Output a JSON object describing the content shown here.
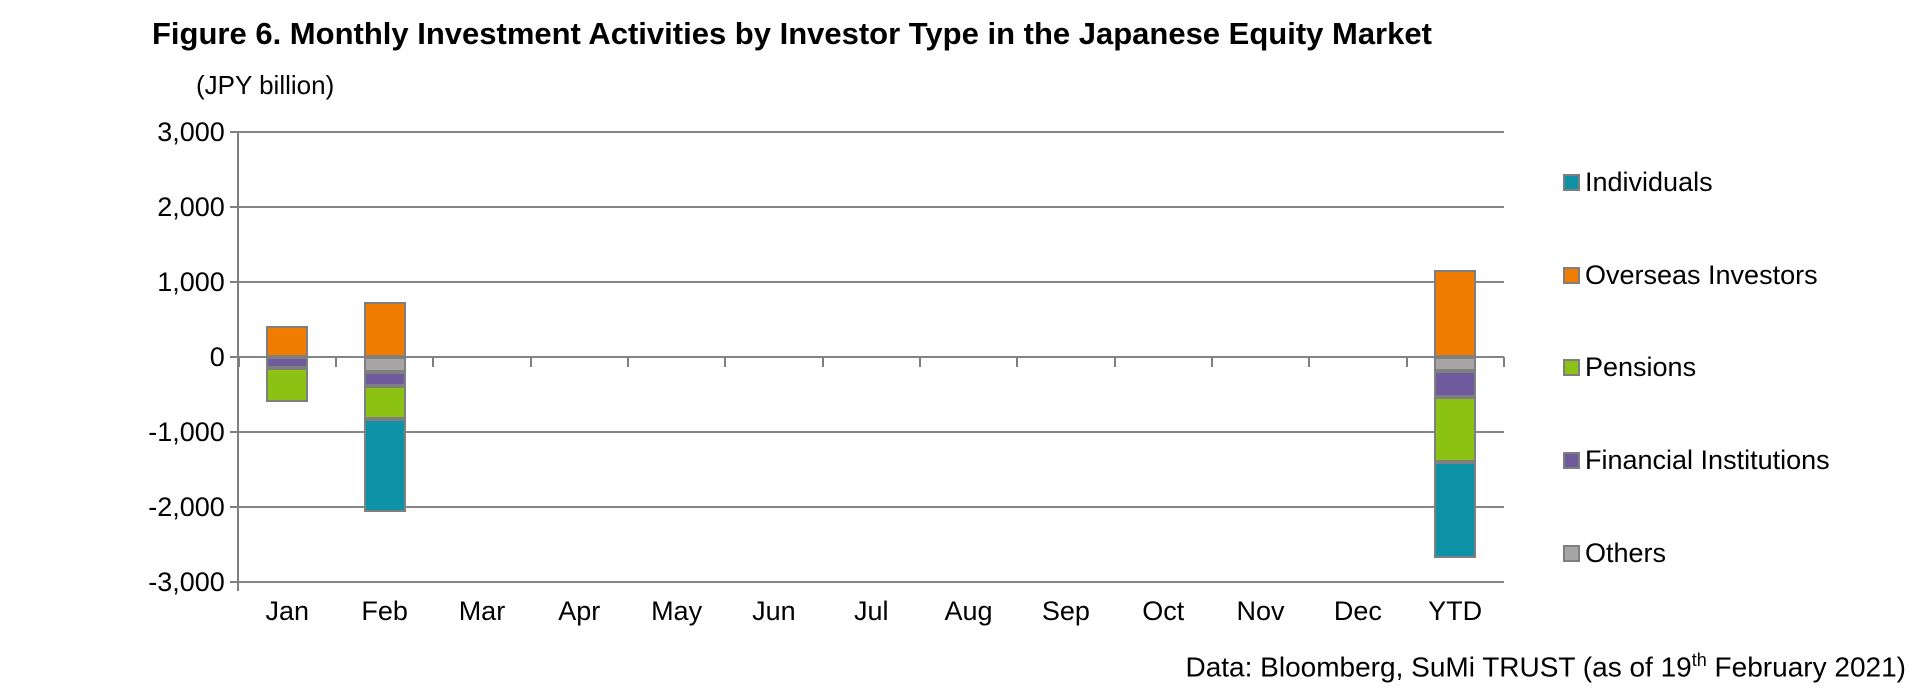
{
  "title": "Figure 6. Monthly Investment Activities by Investor Type in the Japanese Equity Market",
  "unit_label": "(JPY billion)",
  "source": {
    "prefix": "Data: Bloomberg, SuMi TRUST (as of 19",
    "superscript": "th",
    "suffix": " February 2021)"
  },
  "colors": {
    "axis": "#858585",
    "segment_border": "#7f7f7f",
    "text": "#000000",
    "background": "#ffffff"
  },
  "chart_data": {
    "type": "bar",
    "stacked": true,
    "title": "Figure 6. Monthly Investment Activities by Investor Type in the Japanese Equity Market",
    "ylabel": "(JPY billion)",
    "categories": [
      "Jan",
      "Feb",
      "Mar",
      "Apr",
      "May",
      "Jun",
      "Jul",
      "Aug",
      "Sep",
      "Oct",
      "Nov",
      "Dec",
      "YTD"
    ],
    "series": [
      {
        "name": "Individuals",
        "color": "#0e92a8",
        "values": [
          0,
          -1240,
          0,
          0,
          0,
          0,
          0,
          0,
          0,
          0,
          0,
          0,
          -1270
        ]
      },
      {
        "name": "Overseas Investors",
        "color": "#f07d00",
        "values": [
          420,
          740,
          0,
          0,
          0,
          0,
          0,
          0,
          0,
          0,
          0,
          0,
          1160
        ]
      },
      {
        "name": "Pensions",
        "color": "#8cc213",
        "values": [
          -450,
          -430,
          0,
          0,
          0,
          0,
          0,
          0,
          0,
          0,
          0,
          0,
          -870
        ]
      },
      {
        "name": "Financial Institutions",
        "color": "#705a9e",
        "values": [
          -150,
          -190,
          0,
          0,
          0,
          0,
          0,
          0,
          0,
          0,
          0,
          0,
          -350
        ]
      },
      {
        "name": "Others",
        "color": "#a6a6a6",
        "values": [
          0,
          -200,
          0,
          0,
          0,
          0,
          0,
          0,
          0,
          0,
          0,
          0,
          -185
        ]
      }
    ],
    "ylim": [
      -3000,
      3000
    ],
    "ytick_step": 1000,
    "ytick_labels": [
      "3,000",
      "2,000",
      "1,000",
      "0",
      "-1,000",
      "-2,000",
      "-3,000"
    ],
    "grid": true,
    "legend_position": "right"
  }
}
